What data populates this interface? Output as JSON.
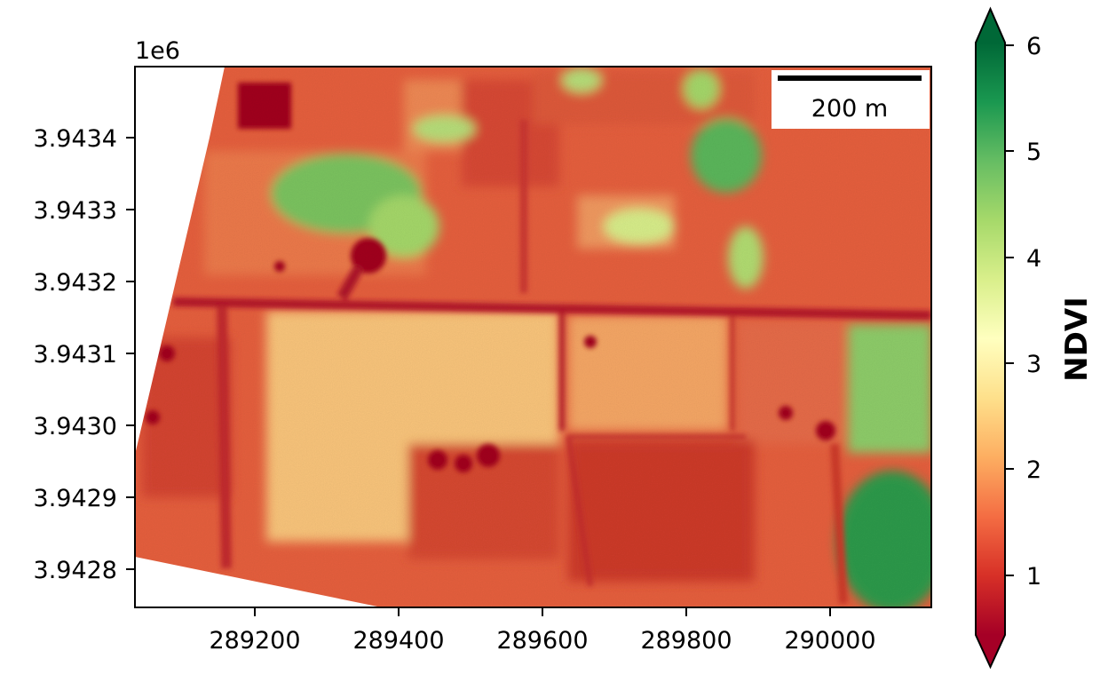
{
  "map": {
    "x_offset_label": "",
    "y_offset_label": "1e6",
    "x_ticks": [
      {
        "value": 289200,
        "label": "289200"
      },
      {
        "value": 289400,
        "label": "289400"
      },
      {
        "value": 289600,
        "label": "289600"
      },
      {
        "value": 289800,
        "label": "289800"
      },
      {
        "value": 290000,
        "label": "290000"
      }
    ],
    "y_ticks": [
      {
        "value": 3.9434,
        "label": "3.9434"
      },
      {
        "value": 3.9433,
        "label": "3.9433"
      },
      {
        "value": 3.9432,
        "label": "3.9432"
      },
      {
        "value": 3.9431,
        "label": "3.9431"
      },
      {
        "value": 3.943,
        "label": "3.9430"
      },
      {
        "value": 3.9429,
        "label": "3.9429"
      },
      {
        "value": 3.9428,
        "label": "3.9428"
      }
    ],
    "x_range": [
      289035,
      290140
    ],
    "y_range": [
      3.94275,
      3.9435
    ],
    "scale_bar": {
      "label": "200 m",
      "length_m": 200
    }
  },
  "colorbar": {
    "label": "NDVI",
    "range": [
      0.5,
      6.3
    ],
    "extend": "both",
    "ticks": [
      {
        "value": 1,
        "label": "1"
      },
      {
        "value": 2,
        "label": "2"
      },
      {
        "value": 3,
        "label": "3"
      },
      {
        "value": 4,
        "label": "4"
      },
      {
        "value": 5,
        "label": "5"
      },
      {
        "value": 6,
        "label": "6"
      }
    ],
    "colormap": "RdYlGn",
    "colors": [
      "#a50026",
      "#d73027",
      "#f46d43",
      "#fdae61",
      "#fee08b",
      "#ffffbf",
      "#d9ef8b",
      "#a6d96a",
      "#66bd63",
      "#1a9850",
      "#006837"
    ]
  }
}
